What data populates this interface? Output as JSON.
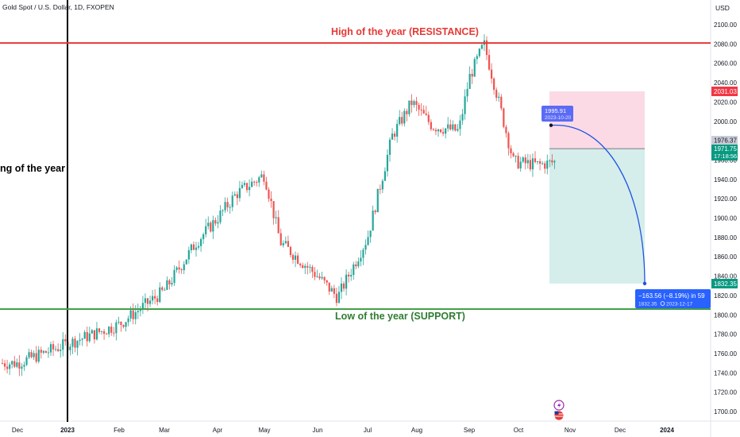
{
  "header": {
    "symbol_title": "Gold Spot / U.S. Dollar, 1D, FXOPEN",
    "currency": "USD"
  },
  "colors": {
    "bullish": "#26a69a",
    "bearish": "#ef5350",
    "resistance": "#e53935",
    "support": "#43a047",
    "projection": "#1e53e5",
    "stop_zone": "#f8bbd0",
    "target_zone": "#b2dfdb"
  },
  "annotations": {
    "resistance_label": "High of the year (RESISTANCE)",
    "support_label": "Low of the year (SUPPORT)",
    "year_start_label": "ng of the year",
    "start_price": "1995.91",
    "start_date": "2023-10-20",
    "change_text": "−163.56 (−8.19%) in 59",
    "end_price": "1832.35",
    "end_date": "2023-12-17"
  },
  "price_tags": {
    "stop": "2031.03",
    "prev": "1976.37",
    "last": "1971.75",
    "countdown": "17:18:56",
    "target": "1832.35"
  },
  "chart_data": {
    "type": "candlestick",
    "title": "Gold Spot / U.S. Dollar, 1D, FXOPEN",
    "y_unit": "USD",
    "ylim": [
      1690,
      2110
    ],
    "y_ticks": [
      1700,
      1720,
      1740,
      1760,
      1780,
      1800,
      1820,
      1840,
      1860,
      1880,
      1900,
      1920,
      1940,
      1960,
      1980,
      2000,
      2020,
      2040,
      2060,
      2080,
      2100
    ],
    "x_ticks": [
      "Dec",
      "2023",
      "Feb",
      "Mar",
      "Apr",
      "May",
      "Jun",
      "Jul",
      "Aug",
      "Sep",
      "Oct",
      "Nov",
      "Dec",
      "2024"
    ],
    "grid": false,
    "key_prices": [
      {
        "x": 0.0,
        "y": 1750
      },
      {
        "x": 2.0,
        "y": 1790
      },
      {
        "x": 3.0,
        "y": 1825
      },
      {
        "x": 3.6,
        "y": 1875
      },
      {
        "x": 4.4,
        "y": 1925
      },
      {
        "x": 5.0,
        "y": 1945
      },
      {
        "x": 5.3,
        "y": 1875
      },
      {
        "x": 6.0,
        "y": 1840
      },
      {
        "x": 6.4,
        "y": 1818
      },
      {
        "x": 7.0,
        "y": 1880
      },
      {
        "x": 7.5,
        "y": 1985
      },
      {
        "x": 7.9,
        "y": 2020
      },
      {
        "x": 8.3,
        "y": 1995
      },
      {
        "x": 8.8,
        "y": 1990
      },
      {
        "x": 9.0,
        "y": 2045
      },
      {
        "x": 9.3,
        "y": 2080
      },
      {
        "x": 9.6,
        "y": 2020
      },
      {
        "x": 9.9,
        "y": 1958
      },
      {
        "x": 10.4,
        "y": 1955
      },
      {
        "x": 10.9,
        "y": 1960
      },
      {
        "x": 11.3,
        "y": 1940
      },
      {
        "x": 11.8,
        "y": 1922
      },
      {
        "x": 12.2,
        "y": 1905
      },
      {
        "x": 12.7,
        "y": 1930
      },
      {
        "x": 13.2,
        "y": 1935
      },
      {
        "x": 13.7,
        "y": 1965
      },
      {
        "x": 14.0,
        "y": 1975
      },
      {
        "x": 14.5,
        "y": 1950
      },
      {
        "x": 15.0,
        "y": 1958
      },
      {
        "x": 15.6,
        "y": 1930
      },
      {
        "x": 16.1,
        "y": 1910
      },
      {
        "x": 16.4,
        "y": 1888
      },
      {
        "x": 16.9,
        "y": 1915
      },
      {
        "x": 17.3,
        "y": 1940
      },
      {
        "x": 17.8,
        "y": 1918
      },
      {
        "x": 18.2,
        "y": 1932
      },
      {
        "x": 18.8,
        "y": 1918
      },
      {
        "x": 19.2,
        "y": 1870
      },
      {
        "x": 19.6,
        "y": 1825
      },
      {
        "x": 19.9,
        "y": 1820
      },
      {
        "x": 20.3,
        "y": 1860
      },
      {
        "x": 20.8,
        "y": 1925
      },
      {
        "x": 21.1,
        "y": 1975
      },
      {
        "x": 21.4,
        "y": 1972
      }
    ],
    "resistance": 2081,
    "support": 1806,
    "position": {
      "entry": 1971.75,
      "stop": 2031.03,
      "target": 1832.35
    },
    "projection": {
      "from": 1995.91,
      "to": 1832.35
    }
  }
}
